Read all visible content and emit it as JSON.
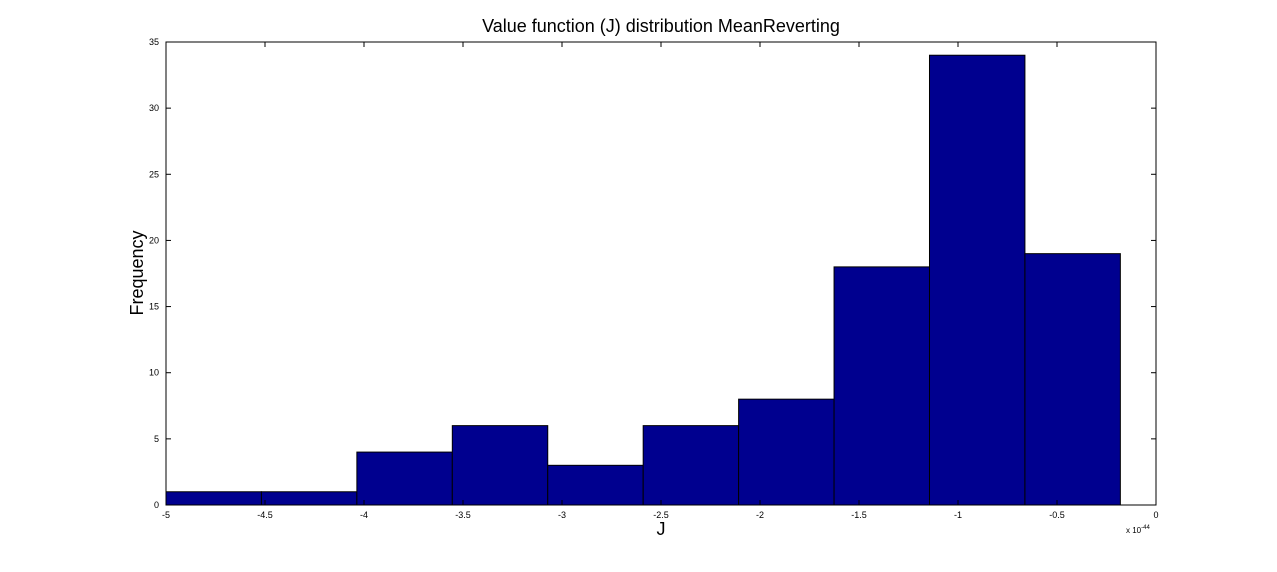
{
  "chart_data": {
    "type": "bar",
    "title": "Value function (J) distribution MeanReverting",
    "xlabel": "J",
    "ylabel": "Frequency",
    "x_multiplier_base": "x 10",
    "x_multiplier_exponent": "-44",
    "xlim": [
      -5,
      0
    ],
    "ylim": [
      0,
      35
    ],
    "x_ticks": [
      -5,
      -4.5,
      -4,
      -3.5,
      -3,
      -2.5,
      -2,
      -1.5,
      -1,
      -0.5,
      0
    ],
    "x_tick_labels": [
      "-5",
      "-4.5",
      "-4",
      "-3.5",
      "-3",
      "-2.5",
      "-2",
      "-1.5",
      "-1",
      "-0.5",
      "0"
    ],
    "y_ticks": [
      0,
      5,
      10,
      15,
      20,
      25,
      30,
      35
    ],
    "y_tick_labels": [
      "0",
      "5",
      "10",
      "15",
      "20",
      "25",
      "30",
      "35"
    ],
    "bin_edges": [
      -5.0,
      -4.518,
      -4.036,
      -3.554,
      -3.072,
      -2.59,
      -2.108,
      -1.626,
      -1.144,
      -0.662,
      -0.18
    ],
    "values": [
      1,
      1,
      4,
      6,
      3,
      6,
      8,
      18,
      34,
      19
    ],
    "grid": false,
    "bar_color": "#00008f",
    "edge_color": "#000000"
  }
}
